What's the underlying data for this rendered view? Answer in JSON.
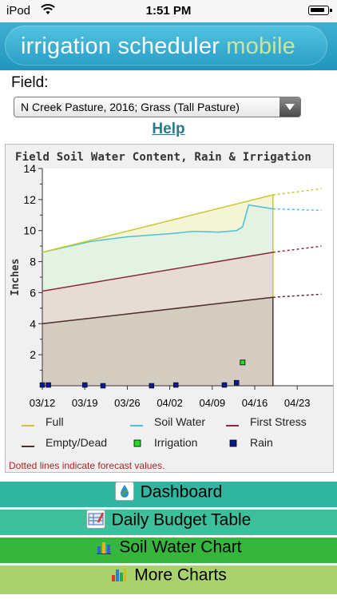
{
  "status_bar": {
    "carrier": "iPod",
    "time": "1:51 PM"
  },
  "banner": {
    "title_main": "irrigation scheduler",
    "title_accent": "mobile"
  },
  "field": {
    "label": "Field:",
    "selected": "N Creek Pasture, 2016; Grass (Tall Pasture)"
  },
  "help": {
    "label": "Help"
  },
  "chart_data": {
    "type": "line",
    "title": "Field Soil Water Content, Rain & Irrigation",
    "ylabel": "Inches",
    "xlabel": "",
    "ylim": [
      0,
      14
    ],
    "yticks": [
      "14",
      "12",
      "10",
      "8",
      "6",
      "4",
      "2"
    ],
    "xticks": [
      "03/12",
      "03/19",
      "03/26",
      "04/02",
      "04/09",
      "04/16",
      "04/23"
    ],
    "legend_position": "bottom",
    "note": "Dotted lines indicate forecast values.",
    "series": [
      {
        "name": "Full",
        "color": "#c8c832",
        "points": [
          [
            "03/12",
            8.6
          ],
          [
            "04/19",
            12.3
          ]
        ],
        "forecast": [
          [
            "04/19",
            12.3
          ],
          [
            "04/27",
            12.7
          ]
        ]
      },
      {
        "name": "Soil Water",
        "color": "#4cc0d8",
        "points": [
          [
            "03/12",
            8.6
          ],
          [
            "03/20",
            9.3
          ],
          [
            "03/26",
            9.6
          ],
          [
            "04/02",
            9.8
          ],
          [
            "04/06",
            9.95
          ],
          [
            "04/10",
            9.9
          ],
          [
            "04/13",
            10.0
          ],
          [
            "04/14",
            10.25
          ],
          [
            "04/15",
            11.65
          ],
          [
            "04/19",
            11.4
          ]
        ],
        "forecast": [
          [
            "04/19",
            11.4
          ],
          [
            "04/27",
            11.3
          ]
        ]
      },
      {
        "name": "First Stress",
        "color": "#8b2a3a",
        "points": [
          [
            "03/12",
            6.1
          ],
          [
            "04/19",
            8.6
          ]
        ],
        "forecast": [
          [
            "04/19",
            8.6
          ],
          [
            "04/27",
            9.0
          ]
        ]
      },
      {
        "name": "Empty/Dead",
        "color": "#4a3028",
        "points": [
          [
            "03/12",
            4.0
          ],
          [
            "04/19",
            5.7
          ]
        ],
        "forecast": [
          [
            "04/19",
            5.7
          ],
          [
            "04/27",
            5.9
          ]
        ]
      },
      {
        "name": "Irrigation",
        "color": "#22dd22",
        "points": [
          [
            "04/14",
            1.5
          ]
        ]
      },
      {
        "name": "Rain",
        "color": "#0d1a8c",
        "points": [
          [
            "03/12",
            0.05
          ],
          [
            "03/13",
            0.05
          ],
          [
            "03/19",
            0.05
          ],
          [
            "03/22",
            0.0
          ],
          [
            "03/30",
            0.0
          ],
          [
            "04/03",
            0.05
          ],
          [
            "04/11",
            0.05
          ],
          [
            "04/13",
            0.2
          ]
        ]
      }
    ]
  },
  "menu": [
    {
      "label": "Dashboard",
      "icon": "drop-leaf-icon",
      "bg": "#2fb5a0"
    },
    {
      "label": "Daily Budget Table",
      "icon": "table-pencil-icon",
      "bg": "#3cbf9a"
    },
    {
      "label": "Soil Water Chart",
      "icon": "bar-chart-icon",
      "bg": "#37b63d"
    },
    {
      "label": "More Charts",
      "icon": "bar-chart-color-icon",
      "bg": "#a9d26e"
    }
  ]
}
